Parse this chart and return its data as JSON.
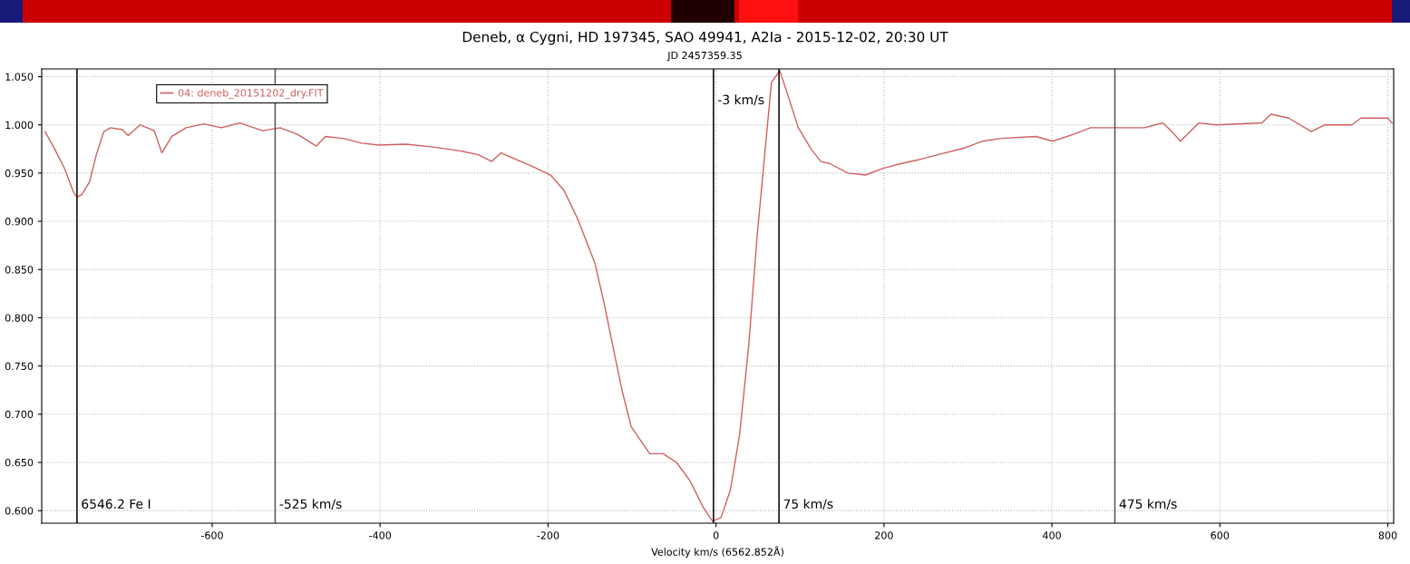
{
  "chart_data": {
    "type": "line",
    "title": "Deneb, α Cygni, HD 197345, SAO 49941, A2Ia - 2015-12-02, 20:30 UT",
    "subtitle": "JD 2457359.35",
    "xlabel": "Velocity km/s (6562.852Å)",
    "xlim": [
      -803,
      807
    ],
    "ylim": [
      0.587,
      1.058
    ],
    "xticks": [
      -600,
      -400,
      -200,
      0,
      200,
      400,
      600,
      800
    ],
    "yticks": [
      {
        "value": 0.6,
        "label": "0.600"
      },
      {
        "value": 0.65,
        "label": "0.650"
      },
      {
        "value": 0.7,
        "label": "0.700"
      },
      {
        "value": 0.75,
        "label": "0.750"
      },
      {
        "value": 0.8,
        "label": "0.800"
      },
      {
        "value": 0.85,
        "label": "0.850"
      },
      {
        "value": 0.9,
        "label": "0.900"
      },
      {
        "value": 0.95,
        "label": "0.950"
      },
      {
        "value": 1.0,
        "label": "1.000"
      },
      {
        "value": 1.05,
        "label": "1.050"
      }
    ],
    "grid": true,
    "legend": "top left",
    "marker": "none",
    "line_style": "solid",
    "series": [
      {
        "name": "04: deneb_20151202_dry.FIT",
        "color": "#d06060",
        "x": [
          -799,
          -787,
          -776,
          -765,
          -761,
          -755,
          -746,
          -738,
          -729,
          -721,
          -707,
          -700,
          -686,
          -669,
          -660,
          -648,
          -631,
          -610,
          -589,
          -567,
          -540,
          -519,
          -498,
          -476,
          -465,
          -444,
          -422,
          -401,
          -369,
          -337,
          -305,
          -283,
          -267,
          -256,
          -235,
          -219,
          -197,
          -181,
          -165,
          -144,
          -133,
          -122,
          -112,
          -101,
          -79,
          -63,
          -47,
          -31,
          -15,
          -4,
          6,
          17,
          28,
          39,
          49,
          60,
          66,
          76,
          84,
          98,
          114,
          125,
          135,
          157,
          178,
          199,
          221,
          242,
          264,
          296,
          317,
          339,
          381,
          401,
          425,
          446,
          478,
          510,
          532,
          543,
          553,
          575,
          596,
          650,
          661,
          682,
          709,
          725,
          757,
          768,
          800,
          805
        ],
        "values": [
          0.993,
          0.974,
          0.955,
          0.93,
          0.925,
          0.928,
          0.941,
          0.969,
          0.993,
          0.997,
          0.995,
          0.989,
          1.0,
          0.994,
          0.971,
          0.988,
          0.997,
          1.001,
          0.997,
          1.002,
          0.994,
          0.997,
          0.99,
          0.978,
          0.988,
          0.986,
          0.981,
          0.979,
          0.98,
          0.977,
          0.973,
          0.969,
          0.962,
          0.971,
          0.963,
          0.957,
          0.948,
          0.932,
          0.903,
          0.856,
          0.814,
          0.767,
          0.725,
          0.687,
          0.659,
          0.659,
          0.65,
          0.631,
          0.603,
          0.589,
          0.593,
          0.621,
          0.678,
          0.772,
          0.885,
          0.988,
          1.044,
          1.056,
          1.035,
          0.997,
          0.974,
          0.962,
          0.96,
          0.95,
          0.948,
          0.955,
          0.96,
          0.964,
          0.969,
          0.976,
          0.983,
          0.986,
          0.988,
          0.983,
          0.99,
          0.997,
          0.997,
          0.997,
          1.002,
          0.993,
          0.983,
          1.002,
          1.0,
          1.002,
          1.011,
          1.007,
          0.993,
          1.0,
          1.0,
          1.007,
          1.007,
          1.002
        ]
      }
    ],
    "ref_lines": [
      {
        "axis": "x",
        "value": -761,
        "label": "6546.2 Fe I",
        "color": "#000000"
      },
      {
        "axis": "x",
        "value": -525,
        "label": "-525 km/s",
        "color": "#555555"
      },
      {
        "axis": "x",
        "value": -3,
        "label": "-3 km/s",
        "color": "#000000"
      },
      {
        "axis": "x",
        "value": 75,
        "label": "75 km/s",
        "color": "#000000"
      },
      {
        "axis": "x",
        "value": 475,
        "label": "475 km/s",
        "color": "#555555"
      }
    ]
  }
}
